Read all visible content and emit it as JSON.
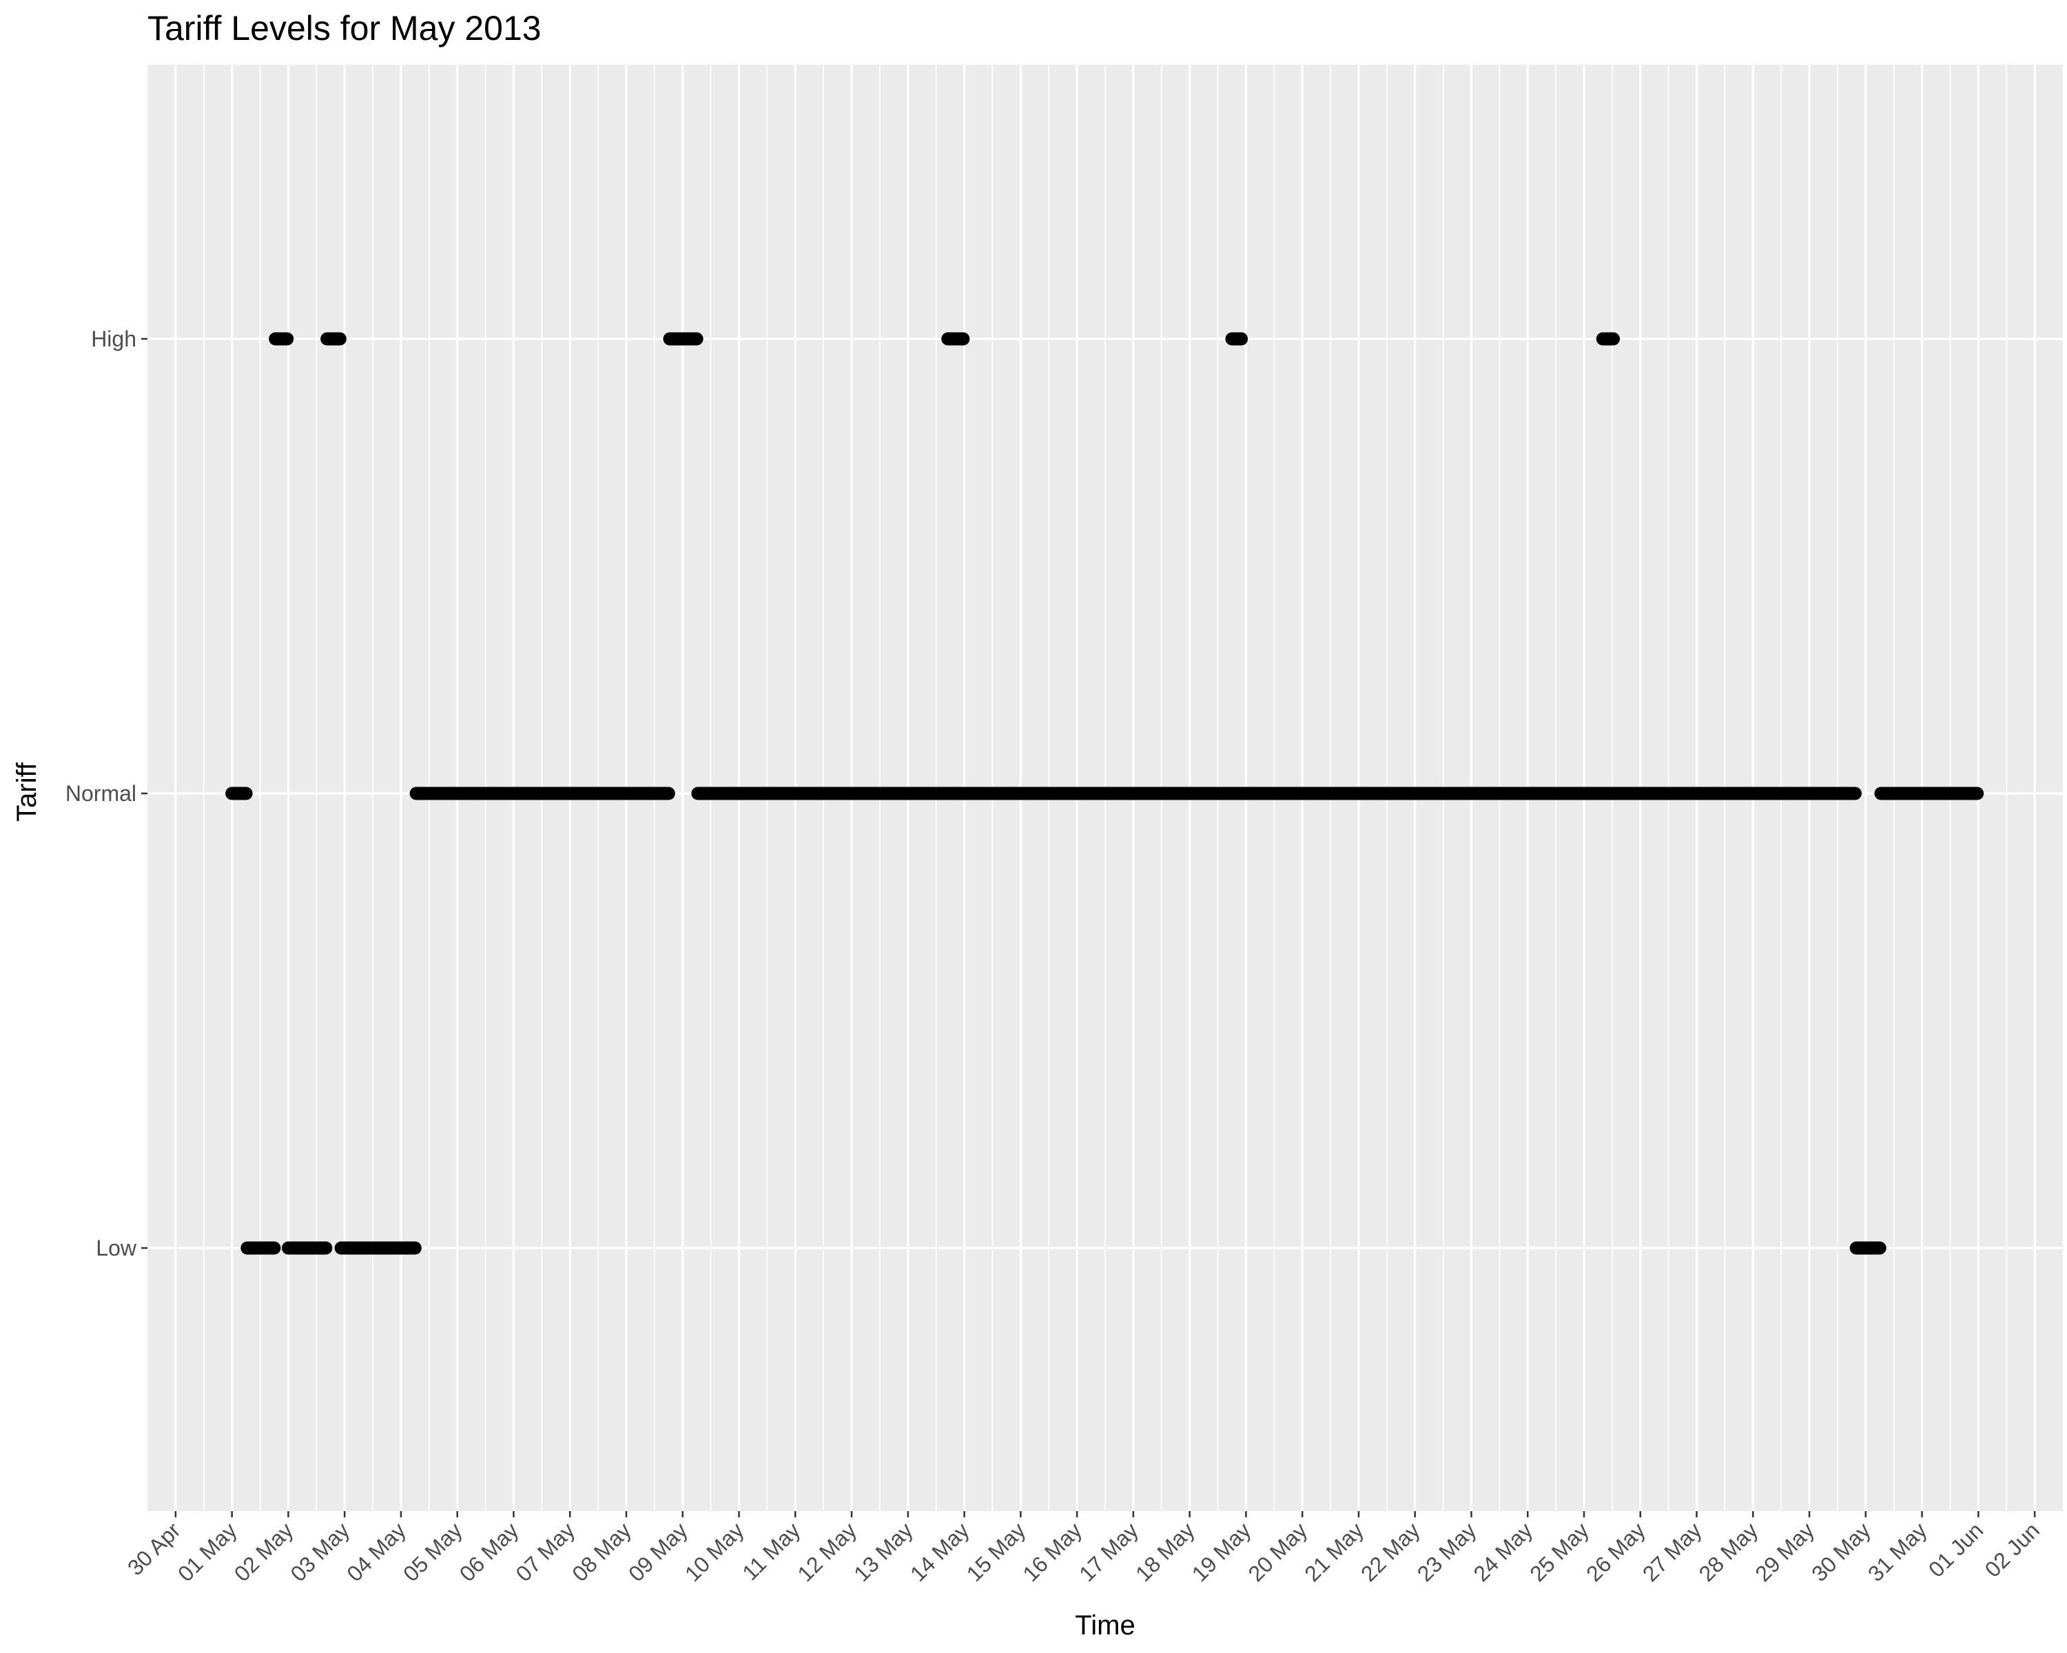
{
  "chart_data": {
    "type": "scatter",
    "title": "Tariff Levels for May 2013",
    "xlabel": "Time",
    "ylabel": "Tariff",
    "y_categories": [
      "Low",
      "Normal",
      "High"
    ],
    "x_ticks": [
      "30 Apr",
      "01 May",
      "02 May",
      "03 May",
      "04 May",
      "05 May",
      "06 May",
      "07 May",
      "08 May",
      "09 May",
      "10 May",
      "11 May",
      "12 May",
      "13 May",
      "14 May",
      "15 May",
      "16 May",
      "17 May",
      "18 May",
      "19 May",
      "20 May",
      "21 May",
      "22 May",
      "23 May",
      "24 May",
      "25 May",
      "26 May",
      "27 May",
      "28 May",
      "29 May",
      "30 May",
      "31 May",
      "01 Jun",
      "02 Jun"
    ],
    "xlim": [
      "2013-04-29T12:00",
      "2013-06-02T12:00"
    ],
    "x_unit": "30-minute readings, shown as runs of consecutive points",
    "grid": true,
    "series": [
      {
        "values": [
          {
            "tariff": "Normal",
            "start": "2013-05-01T00:00",
            "end": "2013-05-01T06:00"
          },
          {
            "tariff": "Low",
            "start": "2013-05-01T06:30",
            "end": "2013-05-01T18:00"
          },
          {
            "tariff": "High",
            "start": "2013-05-01T18:30",
            "end": "2013-05-01T23:30"
          },
          {
            "tariff": "Low",
            "start": "2013-05-02T00:00",
            "end": "2013-05-02T16:00"
          },
          {
            "tariff": "High",
            "start": "2013-05-02T16:30",
            "end": "2013-05-02T22:00"
          },
          {
            "tariff": "Low",
            "start": "2013-05-02T22:30",
            "end": "2013-05-04T06:00"
          },
          {
            "tariff": "Normal",
            "start": "2013-05-04T06:30",
            "end": "2013-05-08T18:00"
          },
          {
            "tariff": "High",
            "start": "2013-05-08T18:30",
            "end": "2013-05-09T06:00"
          },
          {
            "tariff": "Normal",
            "start": "2013-05-09T06:30",
            "end": "2013-05-14T06:00"
          },
          {
            "tariff": "High",
            "start": "2013-05-13T17:00",
            "end": "2013-05-13T23:30"
          },
          {
            "tariff": "Normal",
            "start": "2013-05-14T00:00",
            "end": "2013-05-18T22:00"
          },
          {
            "tariff": "High",
            "start": "2013-05-18T18:00",
            "end": "2013-05-18T22:00"
          },
          {
            "tariff": "Normal",
            "start": "2013-05-18T22:30",
            "end": "2013-05-25T13:00"
          },
          {
            "tariff": "High",
            "start": "2013-05-25T08:00",
            "end": "2013-05-25T12:30"
          },
          {
            "tariff": "Normal",
            "start": "2013-05-25T13:00",
            "end": "2013-05-29T19:30"
          },
          {
            "tariff": "Low",
            "start": "2013-05-29T20:00",
            "end": "2013-05-30T06:00"
          },
          {
            "tariff": "Normal",
            "start": "2013-05-30T06:30",
            "end": "2013-05-31T23:30"
          }
        ]
      }
    ]
  }
}
